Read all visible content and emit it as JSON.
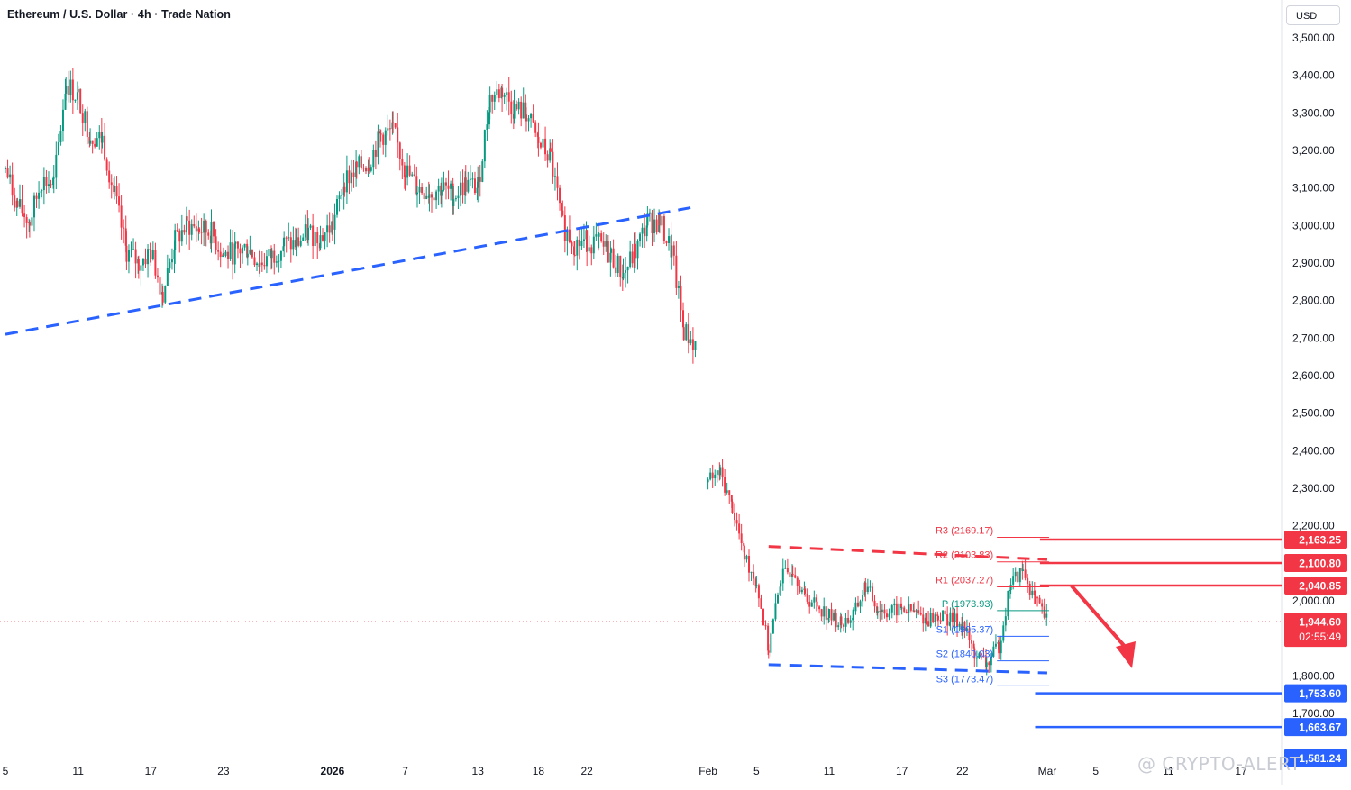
{
  "header": {
    "symbol_title": "Ethereum / U.S. Dollar · 4h · Trade Nation",
    "currency": "USD"
  },
  "watermark": "@ CRYPTO-ALERT",
  "colors": {
    "up": "#089981",
    "down": "#f23645",
    "blue_line": "#2962ff",
    "red_line": "#f23645",
    "grid_text": "#131722",
    "dotted_price": "#f23645"
  },
  "chart_data": {
    "type": "candlestick",
    "timeframe": "4h",
    "ylim": [
      1560,
      3560
    ],
    "y_ticks": [
      3500,
      3400,
      3300,
      3200,
      3100,
      3000,
      2900,
      2800,
      2700,
      2600,
      2500,
      2400,
      2300,
      2200,
      2000,
      1800,
      1700
    ],
    "y_tick_labels": [
      "3,500.00",
      "3,400.00",
      "3,300.00",
      "3,200.00",
      "3,100.00",
      "3,000.00",
      "2,900.00",
      "2,800.00",
      "2,700.00",
      "2,600.00",
      "2,500.00",
      "2,400.00",
      "2,300.00",
      "2,200.00",
      "2,000.00",
      "1,800.00",
      "1,700.00"
    ],
    "x_ticks": [
      {
        "label": "5",
        "date": "2025-12-05",
        "bold": false
      },
      {
        "label": "11",
        "date": "2025-12-11",
        "bold": false
      },
      {
        "label": "17",
        "date": "2025-12-17",
        "bold": false
      },
      {
        "label": "23",
        "date": "2025-12-23",
        "bold": false
      },
      {
        "label": "2026",
        "date": "2026-01-01",
        "bold": true
      },
      {
        "label": "7",
        "date": "2026-01-07",
        "bold": false
      },
      {
        "label": "13",
        "date": "2026-01-13",
        "bold": false
      },
      {
        "label": "18",
        "date": "2026-01-18",
        "bold": false
      },
      {
        "label": "22",
        "date": "2026-01-22",
        "bold": false
      },
      {
        "label": "Feb",
        "date": "2026-02-01",
        "bold": false
      },
      {
        "label": "5",
        "date": "2026-02-05",
        "bold": false
      },
      {
        "label": "11",
        "date": "2026-02-11",
        "bold": false
      },
      {
        "label": "17",
        "date": "2026-02-17",
        "bold": false
      },
      {
        "label": "22",
        "date": "2026-02-22",
        "bold": false
      },
      {
        "label": "Mar",
        "date": "2026-03-01",
        "bold": false
      },
      {
        "label": "5",
        "date": "2026-03-05",
        "bold": false
      },
      {
        "label": "11",
        "date": "2026-03-11",
        "bold": false
      },
      {
        "label": "17",
        "date": "2026-03-17",
        "bold": false
      }
    ],
    "price_path": [
      [
        "2025-12-05",
        3150
      ],
      [
        "2025-12-06",
        3050
      ],
      [
        "2025-12-07",
        3010
      ],
      [
        "2025-12-08",
        3120
      ],
      [
        "2025-12-09",
        3110
      ],
      [
        "2025-12-10",
        3380
      ],
      [
        "2025-12-11",
        3340
      ],
      [
        "2025-12-12",
        3240
      ],
      [
        "2025-12-13",
        3230
      ],
      [
        "2025-12-14",
        3080
      ],
      [
        "2025-12-15",
        2930
      ],
      [
        "2025-12-16",
        2900
      ],
      [
        "2025-12-17",
        2930
      ],
      [
        "2025-12-18",
        2820
      ],
      [
        "2025-12-19",
        2960
      ],
      [
        "2025-12-20",
        3000
      ],
      [
        "2025-12-21",
        2990
      ],
      [
        "2025-12-22",
        2980
      ],
      [
        "2025-12-23",
        2920
      ],
      [
        "2025-12-24",
        2930
      ],
      [
        "2025-12-25",
        2940
      ],
      [
        "2025-12-26",
        2900
      ],
      [
        "2025-12-27",
        2920
      ],
      [
        "2025-12-28",
        2950
      ],
      [
        "2025-12-29",
        2950
      ],
      [
        "2025-12-30",
        2980
      ],
      [
        "2025-12-31",
        2970
      ],
      [
        "2026-01-01",
        3000
      ],
      [
        "2026-01-02",
        3120
      ],
      [
        "2026-01-03",
        3150
      ],
      [
        "2026-01-04",
        3170
      ],
      [
        "2026-01-05",
        3240
      ],
      [
        "2026-01-06",
        3250
      ],
      [
        "2026-01-07",
        3150
      ],
      [
        "2026-01-08",
        3100
      ],
      [
        "2026-01-09",
        3090
      ],
      [
        "2026-01-10",
        3100
      ],
      [
        "2026-01-11",
        3080
      ],
      [
        "2026-01-12",
        3110
      ],
      [
        "2026-01-13",
        3100
      ],
      [
        "2026-01-14",
        3340
      ],
      [
        "2026-01-15",
        3360
      ],
      [
        "2026-01-16",
        3310
      ],
      [
        "2026-01-17",
        3300
      ],
      [
        "2026-01-18",
        3220
      ],
      [
        "2026-01-19",
        3180
      ],
      [
        "2026-01-20",
        3000
      ],
      [
        "2026-01-21",
        2950
      ],
      [
        "2026-01-22",
        2960
      ],
      [
        "2026-01-23",
        2950
      ],
      [
        "2026-01-24",
        2920
      ],
      [
        "2026-01-25",
        2870
      ],
      [
        "2026-01-26",
        2930
      ],
      [
        "2026-01-27",
        3010
      ],
      [
        "2026-01-28",
        3010
      ],
      [
        "2026-01-29",
        2930
      ],
      [
        "2026-01-30",
        2720
      ],
      [
        "2026-01-31",
        2680
      ],
      [
        "2026-02-01",
        2320
      ],
      [
        "2026-02-02",
        2340
      ],
      [
        "2026-02-03",
        2250
      ],
      [
        "2026-02-04",
        2120
      ],
      [
        "2026-02-05",
        2050
      ],
      [
        "2026-02-06",
        1870
      ],
      [
        "2026-02-07",
        2060
      ],
      [
        "2026-02-08",
        2090
      ],
      [
        "2026-02-09",
        2010
      ],
      [
        "2026-02-10",
        1990
      ],
      [
        "2026-02-11",
        1960
      ],
      [
        "2026-02-12",
        1940
      ],
      [
        "2026-02-13",
        1960
      ],
      [
        "2026-02-14",
        2040
      ],
      [
        "2026-02-15",
        1980
      ],
      [
        "2026-02-16",
        1970
      ],
      [
        "2026-02-17",
        1980
      ],
      [
        "2026-02-18",
        1970
      ],
      [
        "2026-02-19",
        1950
      ],
      [
        "2026-02-20",
        1960
      ],
      [
        "2026-02-21",
        1950
      ],
      [
        "2026-02-22",
        1940
      ],
      [
        "2026-02-23",
        1860
      ],
      [
        "2026-02-24",
        1830
      ],
      [
        "2026-02-25",
        1880
      ],
      [
        "2026-02-26",
        2050
      ],
      [
        "2026-02-27",
        2080
      ],
      [
        "2026-02-28",
        2000
      ],
      [
        "2026-03-01",
        1944.6
      ]
    ],
    "current_price": "1,944.60",
    "countdown": "02:55:49",
    "price_labels": [
      {
        "value": 2163.25,
        "text": "2,163.25",
        "color": "#f23645"
      },
      {
        "value": 2100.8,
        "text": "2,100.80",
        "color": "#f23645"
      },
      {
        "value": 2040.85,
        "text": "2,040.85",
        "color": "#f23645"
      },
      {
        "value": 1753.6,
        "text": "1,753.60",
        "color": "#2962ff"
      },
      {
        "value": 1663.67,
        "text": "1,663.67",
        "color": "#2962ff"
      },
      {
        "value": 1581.24,
        "text": "1,581.24",
        "color": "#2962ff"
      }
    ],
    "pivots": [
      {
        "label": "R3 (2169.17)",
        "value": 2169.17,
        "color": "#f23645"
      },
      {
        "label": "R2 (2103.83)",
        "value": 2103.83,
        "color": "#f23645"
      },
      {
        "label": "R1 (2037.27)",
        "value": 2037.27,
        "color": "#f23645"
      },
      {
        "label": "P (1973.93)",
        "value": 1973.93,
        "color": "#089981"
      },
      {
        "label": "S1 (1905.37)",
        "value": 1905.37,
        "color": "#2962ff"
      },
      {
        "label": "S2 (1840.03)",
        "value": 1840.03,
        "color": "#2962ff"
      },
      {
        "label": "S3 (1773.47)",
        "value": 1773.47,
        "color": "#2962ff"
      }
    ],
    "trendlines": [
      {
        "name": "support",
        "color": "#2962ff",
        "from": [
          "2025-12-05",
          2710
        ],
        "to": [
          "2026-01-31",
          3050
        ]
      },
      {
        "name": "resistance",
        "color": "#f23645",
        "from": [
          "2026-02-06",
          2145
        ],
        "to": [
          "2026-03-01",
          2110
        ]
      },
      {
        "name": "support",
        "color": "#2962ff",
        "from": [
          "2026-02-06",
          1830
        ],
        "to": [
          "2026-03-01",
          1808
        ]
      }
    ],
    "horizontal_levels": [
      {
        "value": 2163.25,
        "color": "#f23645"
      },
      {
        "value": 2100.8,
        "color": "#f23645"
      },
      {
        "value": 2040.85,
        "color": "#f23645"
      },
      {
        "value": 1753.6,
        "color": "#2962ff"
      },
      {
        "value": 1663.67,
        "color": "#2962ff"
      }
    ],
    "arrow": {
      "from": [
        "2026-03-03",
        2040
      ],
      "to": [
        "2026-03-08",
        1820
      ],
      "color": "#f23645"
    }
  }
}
